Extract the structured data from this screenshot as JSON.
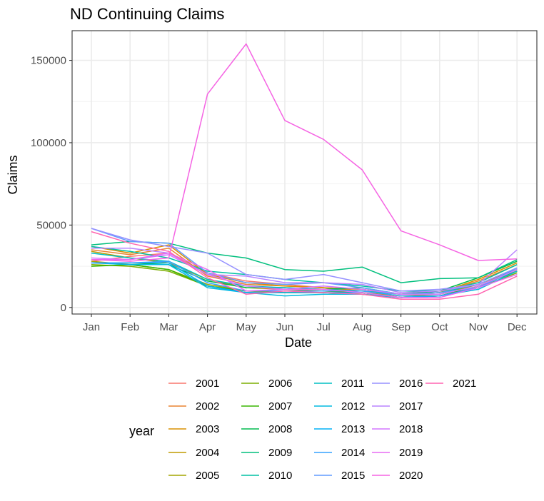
{
  "chart_data": {
    "type": "line",
    "title": "ND Continuing Claims",
    "xlabel": "Date",
    "ylabel": "Claims",
    "categories": [
      "Jan",
      "Feb",
      "Mar",
      "Apr",
      "May",
      "Jun",
      "Jul",
      "Aug",
      "Sep",
      "Oct",
      "Nov",
      "Dec"
    ],
    "ylim": [
      -4000,
      168000
    ],
    "yticks": [
      0,
      50000,
      100000,
      150000
    ],
    "ytick_labels": [
      "0",
      "50000",
      "100000",
      "150000"
    ],
    "grid": true,
    "legend_title": "year",
    "legend_position": "bottom",
    "series": [
      {
        "name": "2001",
        "color": "#F8766D",
        "values": [
          28000,
          31000,
          33000,
          21000,
          16000,
          14000,
          12000,
          11000,
          8000,
          8000,
          14000,
          24000
        ]
      },
      {
        "name": "2002",
        "color": "#EA8331",
        "values": [
          35000,
          32000,
          36000,
          19000,
          14000,
          13000,
          12000,
          11000,
          8000,
          9000,
          16000,
          26000
        ]
      },
      {
        "name": "2003",
        "color": "#D89000",
        "values": [
          37000,
          33000,
          38000,
          20000,
          15000,
          13000,
          12000,
          10000,
          8000,
          9000,
          17000,
          27000
        ]
      },
      {
        "name": "2004",
        "color": "#C09B00",
        "values": [
          34000,
          30000,
          27000,
          17000,
          12000,
          11000,
          10000,
          9000,
          7000,
          8000,
          14000,
          23000
        ]
      },
      {
        "name": "2005",
        "color": "#A3A500",
        "values": [
          28000,
          26000,
          23000,
          14000,
          10000,
          9000,
          9000,
          8000,
          6000,
          7000,
          13000,
          22000
        ]
      },
      {
        "name": "2006",
        "color": "#7CAE00",
        "values": [
          26000,
          25000,
          22000,
          13000,
          9000,
          9000,
          9000,
          8000,
          6000,
          7000,
          12000,
          21000
        ]
      },
      {
        "name": "2007",
        "color": "#39B600",
        "values": [
          25000,
          26000,
          23000,
          13000,
          10000,
          10000,
          10000,
          9000,
          6000,
          7000,
          13000,
          22000
        ]
      },
      {
        "name": "2008",
        "color": "#00BB4E",
        "values": [
          27000,
          27000,
          26000,
          16000,
          12000,
          12000,
          11000,
          12000,
          8000,
          10000,
          18000,
          28000
        ]
      },
      {
        "name": "2009",
        "color": "#00BF7D",
        "values": [
          38000,
          40000,
          39000,
          33000,
          30000,
          23000,
          22000,
          24500,
          15000,
          17500,
          18000,
          29000
        ]
      },
      {
        "name": "2010",
        "color": "#00C1A3",
        "values": [
          37000,
          34000,
          30000,
          22000,
          20000,
          17000,
          15000,
          13000,
          10000,
          10000,
          15000,
          26000
        ]
      },
      {
        "name": "2011",
        "color": "#00BFC4",
        "values": [
          33000,
          30000,
          28000,
          17000,
          13000,
          12000,
          11000,
          10000,
          8000,
          9000,
          14000,
          24000
        ]
      },
      {
        "name": "2012",
        "color": "#00BAE0",
        "values": [
          27000,
          26000,
          26000,
          12000,
          9000,
          7000,
          8000,
          8000,
          6000,
          7000,
          11000,
          22000
        ]
      },
      {
        "name": "2013",
        "color": "#00B0F6",
        "values": [
          27000,
          27000,
          27000,
          13000,
          9000,
          9000,
          9000,
          9000,
          6000,
          7000,
          12000,
          24000
        ]
      },
      {
        "name": "2014",
        "color": "#35A2FF",
        "values": [
          27000,
          27000,
          28000,
          15000,
          10000,
          10000,
          10000,
          10000,
          7000,
          7000,
          12000,
          23000
        ]
      },
      {
        "name": "2015",
        "color": "#619CFF",
        "values": [
          48000,
          40000,
          39000,
          21000,
          15000,
          14000,
          15000,
          12000,
          8000,
          9000,
          12000,
          23000
        ]
      },
      {
        "name": "2016",
        "color": "#9590FF",
        "values": [
          48000,
          41000,
          37000,
          33000,
          20000,
          17000,
          20000,
          15000,
          10000,
          11000,
          14000,
          24000
        ]
      },
      {
        "name": "2017",
        "color": "#B983FF",
        "values": [
          36000,
          36000,
          33000,
          20000,
          19000,
          15000,
          15000,
          14000,
          9000,
          10000,
          14000,
          35000
        ]
      },
      {
        "name": "2018",
        "color": "#D376FF",
        "values": [
          30000,
          29000,
          32000,
          20000,
          13000,
          11000,
          13000,
          11000,
          8000,
          8000,
          13000,
          23000
        ]
      },
      {
        "name": "2019",
        "color": "#E76BF3",
        "values": [
          29000,
          29000,
          33000,
          23000,
          10000,
          11000,
          11000,
          9000,
          6000,
          6000,
          12000,
          20000
        ]
      },
      {
        "name": "2020",
        "color": "#F564E3",
        "values": [
          29000,
          28000,
          30000,
          129500,
          160000,
          113500,
          102000,
          83500,
          46500,
          38000,
          28500,
          29500
        ]
      },
      {
        "name": "2021",
        "color": "#FF64B0",
        "values": [
          46000,
          39000,
          34000,
          18000,
          8000,
          10000,
          9000,
          8000,
          5000,
          5000,
          8000,
          19000
        ]
      }
    ]
  }
}
